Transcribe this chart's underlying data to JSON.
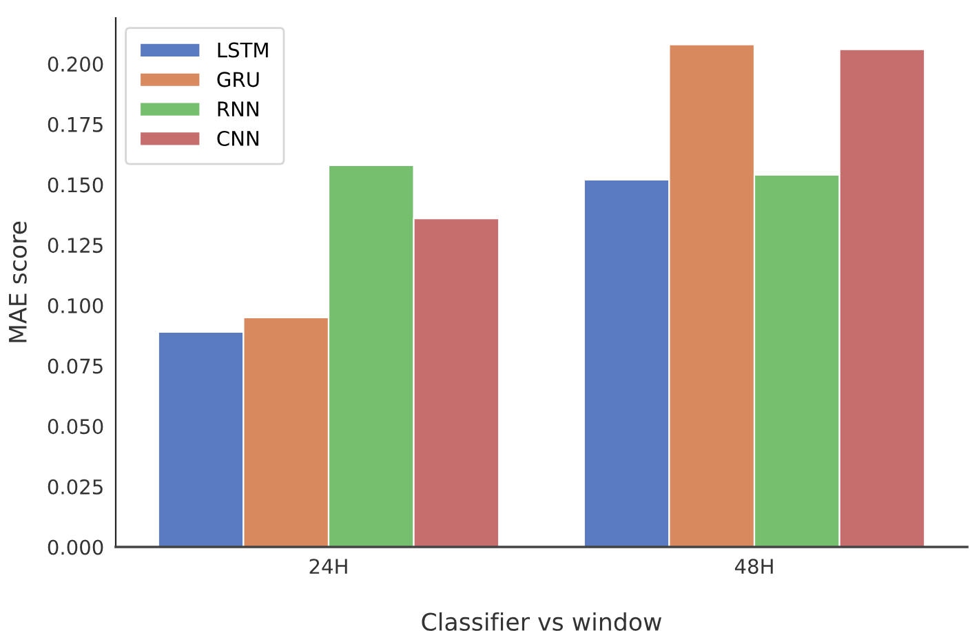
{
  "chart_data": {
    "type": "bar",
    "xlabel": "Classifier vs window",
    "ylabel": "MAE score",
    "categories": [
      "24H",
      "48H"
    ],
    "series": [
      {
        "name": "LSTM",
        "color": "#5a7bbf",
        "values": [
          0.089,
          0.152
        ]
      },
      {
        "name": "GRU",
        "color": "#d8895e",
        "values": [
          0.095,
          0.208
        ]
      },
      {
        "name": "RNN",
        "color": "#76bf6f",
        "values": [
          0.158,
          0.154
        ]
      },
      {
        "name": "CNN",
        "color": "#c66e6e",
        "values": [
          0.136,
          0.206
        ]
      }
    ],
    "ylim": [
      0,
      0.219
    ],
    "yticks": [
      {
        "value": 0,
        "label": "0.000"
      },
      {
        "value": 0.025,
        "label": "0.025"
      },
      {
        "value": 0.05,
        "label": "0.050"
      },
      {
        "value": 0.075,
        "label": "0.075"
      },
      {
        "value": 0.1,
        "label": "0.100"
      },
      {
        "value": 0.125,
        "label": "0.125"
      },
      {
        "value": 0.15,
        "label": "0.150"
      },
      {
        "value": 0.175,
        "label": "0.175"
      },
      {
        "value": 0.2,
        "label": "0.200"
      }
    ],
    "grid": false,
    "legend": "top left"
  }
}
